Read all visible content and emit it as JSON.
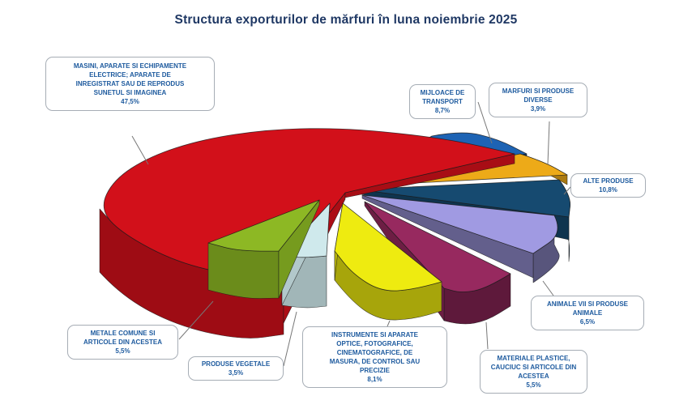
{
  "title": "Structura exporturilor de mărfuri în luna noiembrie 2025",
  "style": {
    "title_color": "#1f3864",
    "label_text_color": "#1d5a9e",
    "callout_border_color": "#a6adb5",
    "connector_color": "#777777",
    "background": "#ffffff"
  },
  "chart_data": {
    "type": "pie",
    "title": "Structura exporturilor de mărfuri în luna noiembrie 2025",
    "unit": "%",
    "style_3d": true,
    "exploded": true,
    "legend_position": "callout-labels",
    "slices": [
      {
        "label": "MASINI, APARATE SI ECHIPAMENTE ELECTRICE; APARATE DE INREGISTRAT SAU DE REPRODUS SUNETUL SI IMAGINEA",
        "value": 47.5,
        "value_label": "47,5%",
        "color": "#d2101a"
      },
      {
        "label": "MIJLOACE DE TRANSPORT",
        "value": 8.7,
        "value_label": "8,7%",
        "color": "#1d63b4"
      },
      {
        "label": "MARFURI SI PRODUSE DIVERSE",
        "value": 3.9,
        "value_label": "3,9%",
        "color": "#edaa18"
      },
      {
        "label": "ALTE PRODUSE",
        "value": 10.8,
        "value_label": "10,8%",
        "color": "#164a70"
      },
      {
        "label": "ANIMALE VII SI PRODUSE ANIMALE",
        "value": 6.5,
        "value_label": "6,5%",
        "color": "#a09ae2"
      },
      {
        "label": "MATERIALE PLASTICE, CAUCIUC SI ARTICOLE DIN ACESTEA",
        "value": 5.5,
        "value_label": "5,5%",
        "color": "#97295f"
      },
      {
        "label": "INSTRUMENTE SI APARATE OPTICE, FOTOGRAFICE, CINEMATOGRAFICE, DE MASURA, DE CONTROL SAU PRECIZIE",
        "value": 8.1,
        "value_label": "8,1%",
        "color": "#eeeb10"
      },
      {
        "label": "PRODUSE VEGETALE",
        "value": 3.5,
        "value_label": "3,5%",
        "color": "#cfe9ec"
      },
      {
        "label": "METALE COMUNE SI ARTICOLE DIN ACESTEA",
        "value": 5.5,
        "value_label": "5,5%",
        "color": "#8db824"
      }
    ]
  }
}
